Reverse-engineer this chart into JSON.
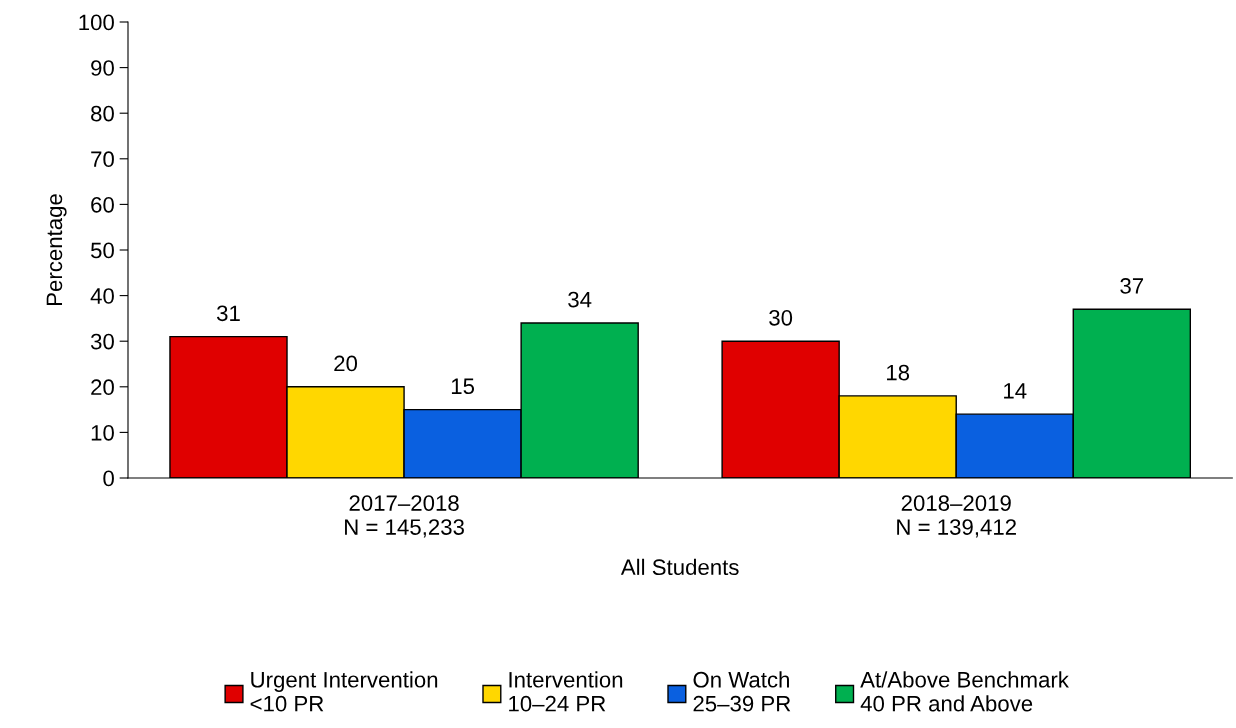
{
  "chart_data": {
    "type": "bar",
    "ylabel": "Percentage",
    "xlabel": "All Students",
    "categories": [
      "2017–2018\nN = 145,233",
      "2018–2019\nN = 139,412"
    ],
    "series": [
      {
        "name": "Urgent Intervention\n<10 PR",
        "color": "#e00000",
        "values": [
          31,
          30
        ]
      },
      {
        "name": "Intervention\n10–24 PR",
        "color": "#ffd700",
        "values": [
          20,
          18
        ]
      },
      {
        "name": "On Watch\n25–39 PR",
        "color": "#0a60e0",
        "values": [
          15,
          14
        ]
      },
      {
        "name": "At/Above Benchmark\n40 PR and Above",
        "color": "#00b050",
        "values": [
          34,
          37
        ]
      }
    ],
    "ylim": [
      0,
      100
    ],
    "yticks": [
      0,
      10,
      20,
      30,
      40,
      50,
      60,
      70,
      80,
      90,
      100
    ],
    "data_labels": true,
    "grid": false,
    "legend": "bottom"
  }
}
